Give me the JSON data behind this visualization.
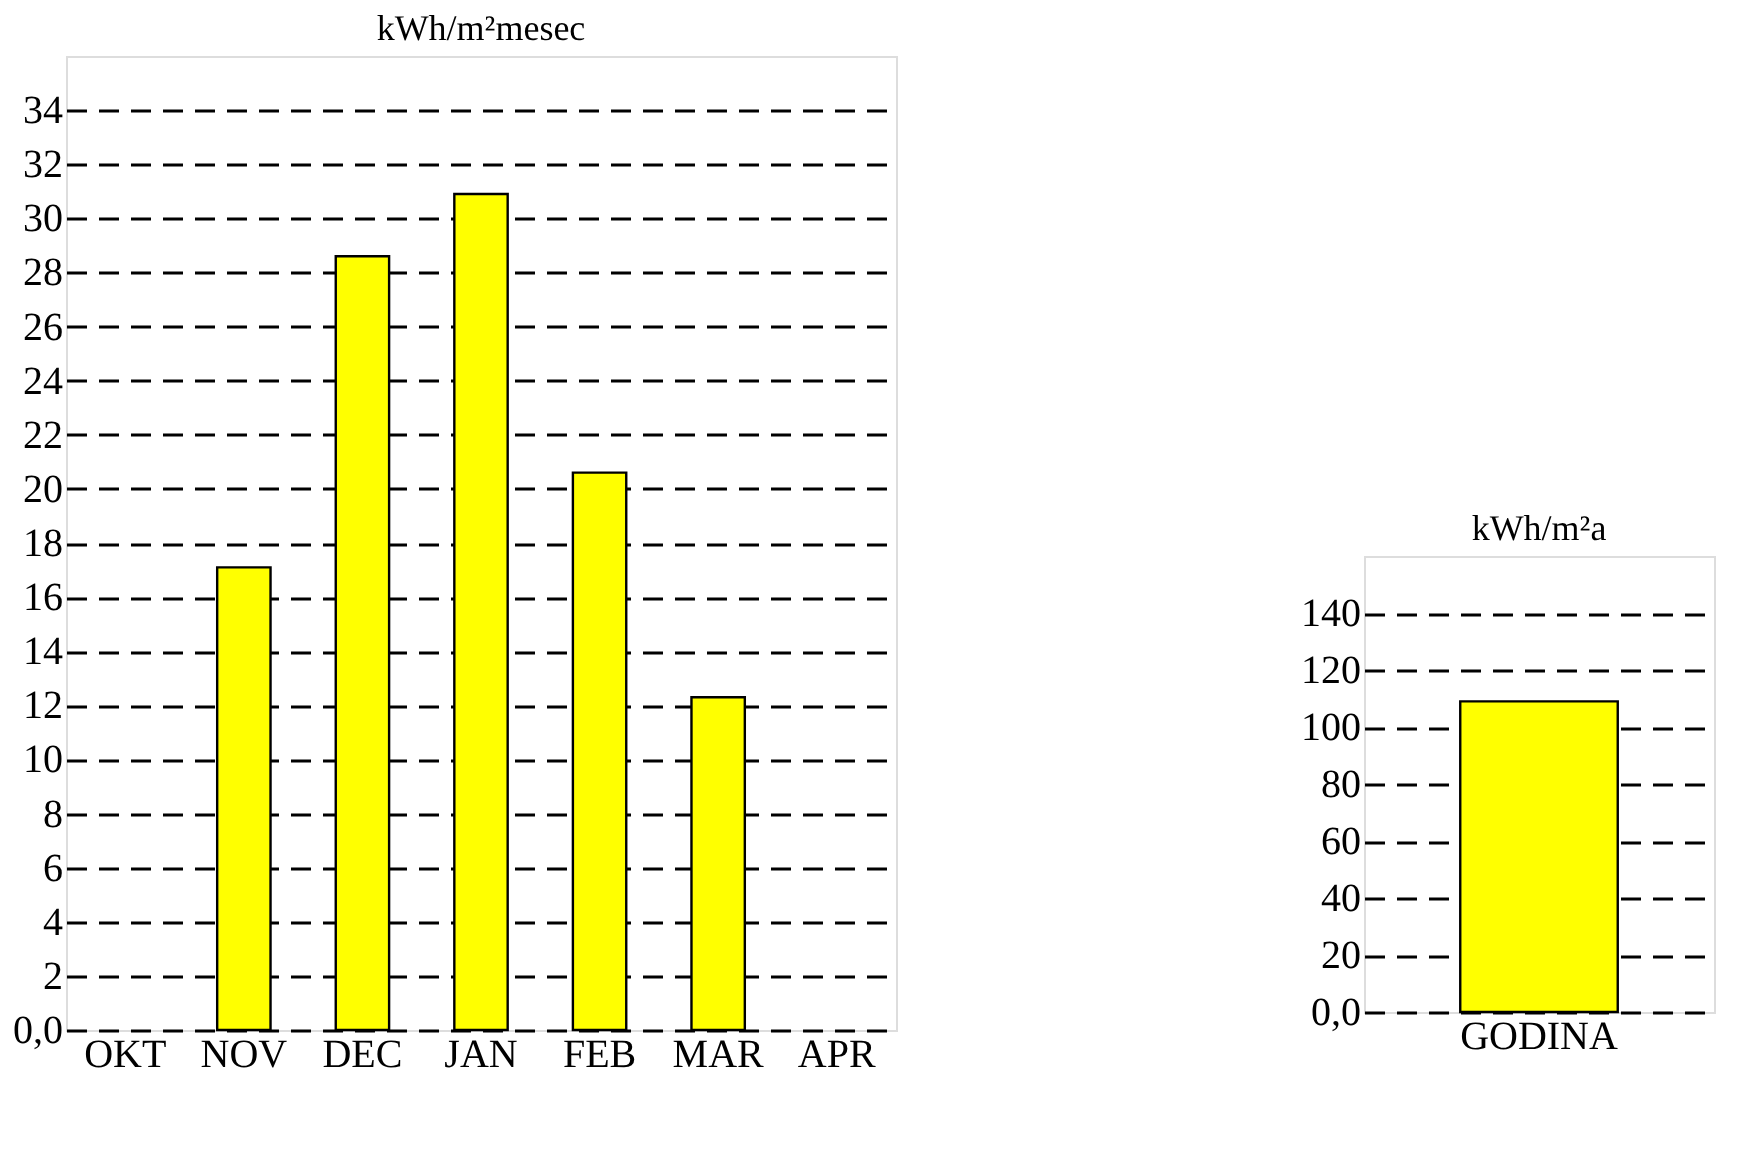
{
  "chart_data": [
    {
      "type": "bar",
      "title": "kWh/m²mesec",
      "categories": [
        "OKT",
        "NOV",
        "DEC",
        "JAN",
        "FEB",
        "MAR",
        "APR"
      ],
      "values": [
        null,
        17.1,
        28.6,
        30.9,
        20.6,
        12.3,
        null
      ],
      "color": "#ffff00",
      "ylim": [
        0,
        36
      ],
      "yticks": [
        {
          "value": 0,
          "label": "0,0"
        },
        2,
        4,
        6,
        8,
        10,
        12,
        14,
        16,
        18,
        20,
        22,
        24,
        26,
        28,
        30,
        32,
        34
      ],
      "grid": "y",
      "line_style": "dashed"
    },
    {
      "type": "bar",
      "title": "kWh/m²a",
      "categories": [
        "GODINA"
      ],
      "values": [
        109
      ],
      "color": "#ffff00",
      "ylim": [
        0,
        160
      ],
      "yticks": [
        {
          "value": 0,
          "label": "0,0"
        },
        20,
        40,
        60,
        80,
        100,
        120,
        140
      ],
      "grid": "y",
      "line_style": "dashed"
    }
  ]
}
